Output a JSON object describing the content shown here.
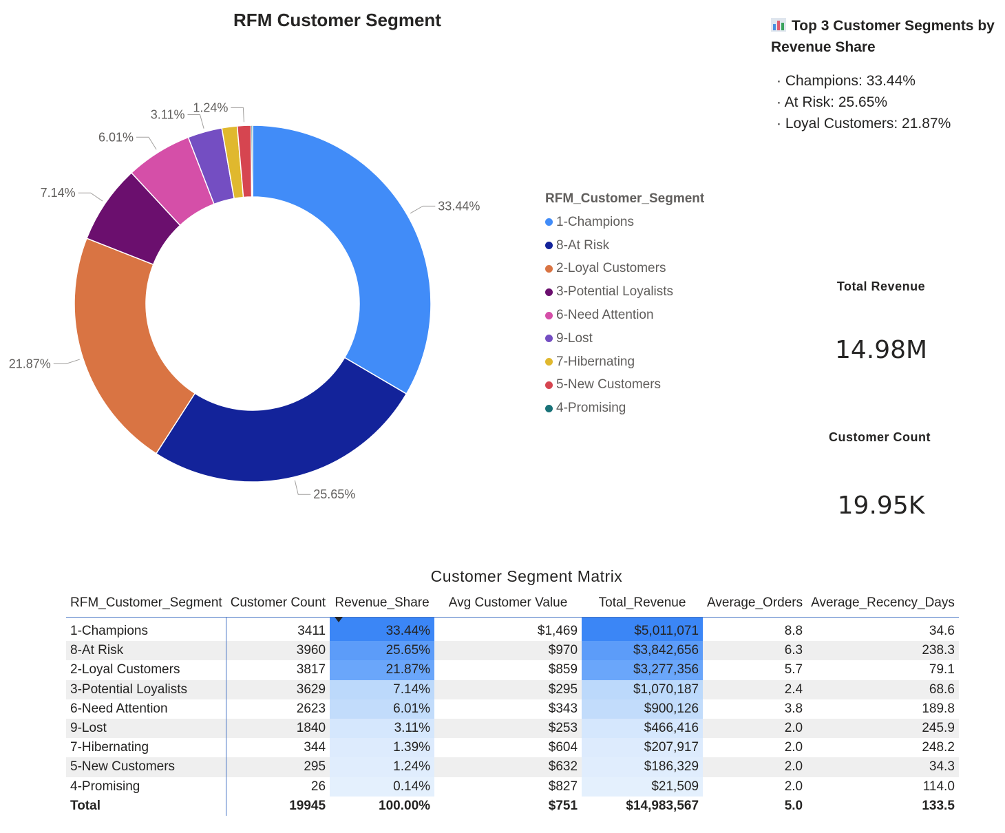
{
  "chart_data": {
    "type": "pie",
    "title": "RFM Customer Segment",
    "legend_title": "RFM_Customer_Segment",
    "legend_placement": "right",
    "slices": [
      {
        "label": "1-Champions",
        "value": 33.44,
        "display": "33.44%",
        "color": "#418cf8"
      },
      {
        "label": "8-At Risk",
        "value": 25.65,
        "display": "25.65%",
        "color": "#13239a"
      },
      {
        "label": "2-Loyal Customers",
        "value": 21.87,
        "display": "21.87%",
        "color": "#d97443"
      },
      {
        "label": "3-Potential Loyalists",
        "value": 7.14,
        "display": "7.14%",
        "color": "#6b0f6e"
      },
      {
        "label": "6-Need Attention",
        "value": 6.01,
        "display": "6.01%",
        "color": "#d54fa8"
      },
      {
        "label": "9-Lost",
        "value": 3.11,
        "display": "3.11%",
        "color": "#744ec2"
      },
      {
        "label": "7-Hibernating",
        "value": 1.39,
        "display": "",
        "color": "#e0b82e"
      },
      {
        "label": "5-New Customers",
        "value": 1.24,
        "display": "1.24%",
        "color": "#d64550"
      },
      {
        "label": "4-Promising",
        "value": 0.14,
        "display": "",
        "color": "#197278"
      }
    ]
  },
  "top3": {
    "title": "Top 3 Customer Segments by Revenue Share",
    "items": [
      "Champions: 33.44%",
      "At Risk: 25.65%",
      "Loyal Customers: 21.87%"
    ]
  },
  "kpis": {
    "total_revenue_label": "Total Revenue",
    "total_revenue_value": "14.98M",
    "customer_count_label": "Customer Count",
    "customer_count_value": "19.95K"
  },
  "matrix": {
    "title": "Customer Segment Matrix",
    "columns": [
      "RFM_Customer_Segment",
      "Customer Count",
      "Revenue_Share",
      "Avg Customer Value",
      "Total_Revenue",
      "Average_Orders",
      "Average_Recency_Days"
    ],
    "rows": [
      [
        "1-Champions",
        "3411",
        "33.44%",
        "$1,469",
        "$5,011,071",
        "8.8",
        "34.6"
      ],
      [
        "8-At Risk",
        "3960",
        "25.65%",
        "$970",
        "$3,842,656",
        "6.3",
        "238.3"
      ],
      [
        "2-Loyal Customers",
        "3817",
        "21.87%",
        "$859",
        "$3,277,356",
        "5.7",
        "79.1"
      ],
      [
        "3-Potential Loyalists",
        "3629",
        "7.14%",
        "$295",
        "$1,070,187",
        "2.4",
        "68.6"
      ],
      [
        "6-Need Attention",
        "2623",
        "6.01%",
        "$343",
        "$900,126",
        "3.8",
        "189.8"
      ],
      [
        "9-Lost",
        "1840",
        "3.11%",
        "$253",
        "$466,416",
        "2.0",
        "245.9"
      ],
      [
        "7-Hibernating",
        "344",
        "1.39%",
        "$604",
        "$207,917",
        "2.0",
        "248.2"
      ],
      [
        "5-New Customers",
        "295",
        "1.24%",
        "$632",
        "$186,329",
        "2.0",
        "34.3"
      ],
      [
        "4-Promising",
        "26",
        "0.14%",
        "$827",
        "$21,509",
        "2.0",
        "114.0"
      ]
    ],
    "total": [
      "Total",
      "19945",
      "100.00%",
      "$751",
      "$14,983,567",
      "5.0",
      "133.5"
    ],
    "colors": {
      "share": [
        "#3b86f6",
        "#5c9cf9",
        "#6aa6fa",
        "#bcd9fb",
        "#c2dcfb",
        "#d5e7fd",
        "#ddebfd",
        "#e0edfd",
        "#e4f0fd"
      ],
      "revenue": [
        "#3b86f6",
        "#5c9cf9",
        "#6aa6fa",
        "#bcd9fb",
        "#c2dcfb",
        "#d5e7fd",
        "#ddebfd",
        "#e0edfd",
        "#e4f0fd"
      ]
    }
  }
}
